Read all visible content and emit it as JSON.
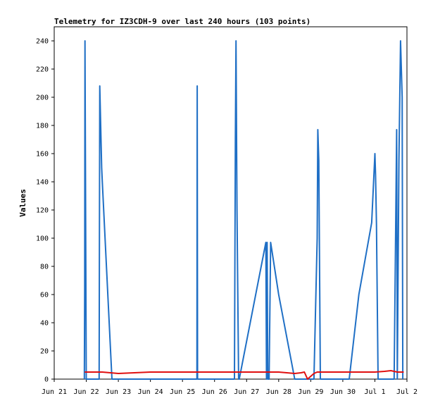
{
  "chart_data": {
    "type": "line",
    "title": "Telemetry for IZ3CDH-9 over last 240 hours (103 points)",
    "xlabel": "",
    "ylabel": "Values",
    "ylim": [
      0,
      250
    ],
    "yticks": [
      0,
      20,
      40,
      60,
      80,
      100,
      120,
      140,
      160,
      180,
      200,
      220,
      240
    ],
    "xlim": [
      0,
      11
    ],
    "xtick_labels": [
      "Jun 21",
      "Jun 22",
      "Jun 23",
      "Jun 24",
      "Jun 25",
      "Jun 26",
      "Jun 27",
      "Jun 28",
      "Jun 29",
      "Jun 30",
      "Jul 1",
      "Jul 2"
    ],
    "xtick_positions": [
      0,
      1,
      2,
      3,
      4,
      5,
      6,
      7,
      8,
      9,
      10,
      11
    ],
    "grid": false,
    "colors": {
      "series1": "#1f6fc5",
      "series2": "#e01010"
    },
    "series": [
      {
        "color": "#1f6fc5",
        "x": [
          0.94,
          0.95,
          0.96,
          1.0,
          1.4,
          1.42,
          1.45,
          1.48,
          1.5,
          1.8,
          2.0,
          4.45,
          4.46,
          4.47,
          4.5,
          5.5,
          5.6,
          5.62,
          5.65,
          5.67,
          5.7,
          5.75,
          5.77,
          6.6,
          6.62,
          6.64,
          6.66,
          6.7,
          6.75,
          7.0,
          7.5,
          7.7,
          7.9,
          8.0,
          8.1,
          8.2,
          8.22,
          8.25,
          8.3,
          8.5,
          8.6,
          8.8,
          9.0,
          9.2,
          9.5,
          9.9,
          10.0,
          10.02,
          10.05,
          10.1,
          10.4,
          10.6,
          10.68,
          10.7,
          10.75,
          10.8,
          10.85,
          10.87
        ],
        "y": [
          0,
          65,
          240,
          0,
          0,
          208,
          180,
          150,
          140,
          0,
          0,
          0,
          208,
          0,
          0,
          0,
          0,
          0,
          170,
          240,
          120,
          0,
          0,
          97,
          0,
          97,
          0,
          0,
          97,
          60,
          0,
          0,
          0,
          0,
          0,
          100,
          177,
          155,
          0,
          0,
          0,
          0,
          0,
          0,
          60,
          111,
          160,
          145,
          110,
          0,
          0,
          0,
          177,
          0,
          155,
          240,
          200,
          0
        ]
      },
      {
        "color": "#e01010",
        "x": [
          0.95,
          1.5,
          2.0,
          2.5,
          3.0,
          4.0,
          5.0,
          5.5,
          6.0,
          7.0,
          7.5,
          7.7,
          7.8,
          7.9,
          8.0,
          8.1,
          8.2,
          8.5,
          9.0,
          9.5,
          10.0,
          10.3,
          10.5,
          10.7,
          10.9
        ],
        "y": [
          5,
          5,
          4,
          4.5,
          5,
          5,
          5,
          5,
          5,
          5,
          4,
          4.5,
          5,
          0,
          2,
          4,
          5,
          5,
          5,
          5,
          5,
          5.5,
          6,
          5,
          5
        ]
      }
    ]
  }
}
